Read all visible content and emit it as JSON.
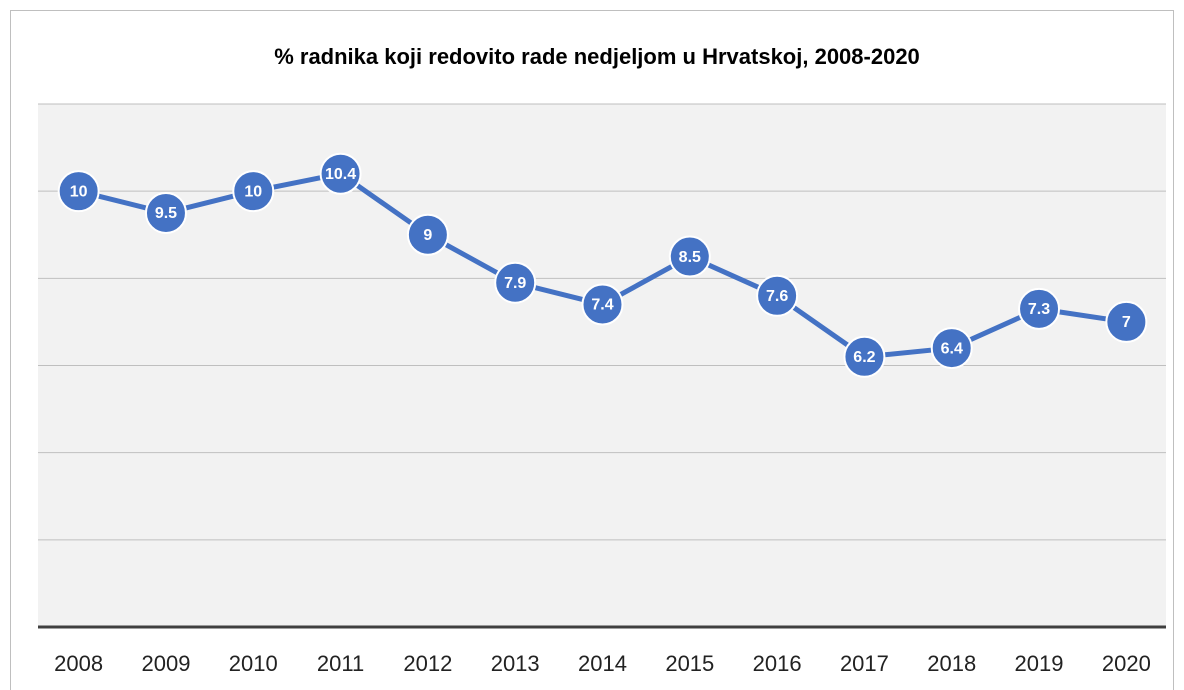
{
  "chart_data": {
    "type": "line",
    "title": "% radnika koji redovito rade nedjeljom u Hrvatskoj, 2008-2020",
    "categories": [
      "2008",
      "2009",
      "2010",
      "2011",
      "2012",
      "2013",
      "2014",
      "2015",
      "2016",
      "2017",
      "2018",
      "2019",
      "2020"
    ],
    "series": [
      {
        "name": "%",
        "color": "#4472c4",
        "values": [
          10,
          9.5,
          10,
          10.4,
          9,
          7.9,
          7.4,
          8.5,
          7.6,
          6.2,
          6.4,
          7.3,
          7
        ]
      }
    ],
    "ylim": [
      0,
      12
    ],
    "yticks": [
      0,
      2,
      4,
      6,
      8,
      10,
      12
    ],
    "grid": true
  }
}
